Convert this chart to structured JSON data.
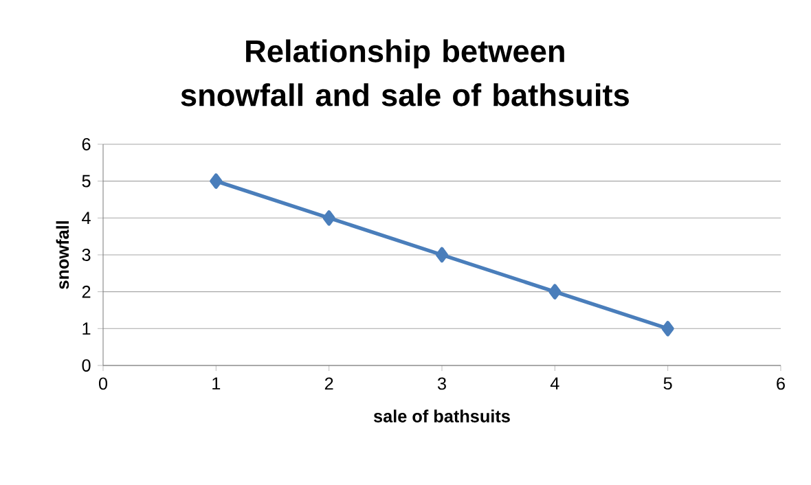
{
  "chart_data": {
    "type": "line",
    "title": "Relationship between snowfall and sale of bathsuits",
    "xlabel": "sale of bathsuits",
    "ylabel": "snowfall",
    "x": [
      1,
      2,
      3,
      4,
      5
    ],
    "series": [
      {
        "color": "#4a7ebb",
        "values": [
          5,
          4,
          3,
          2,
          1
        ]
      }
    ],
    "xlim": [
      0,
      6
    ],
    "ylim": [
      0,
      6
    ],
    "xticks": [
      0,
      1,
      2,
      3,
      4,
      5,
      6
    ],
    "yticks": [
      0,
      1,
      2,
      3,
      4,
      5,
      6
    ],
    "grid": "y",
    "marker": "diamond",
    "line_style": "solid"
  }
}
